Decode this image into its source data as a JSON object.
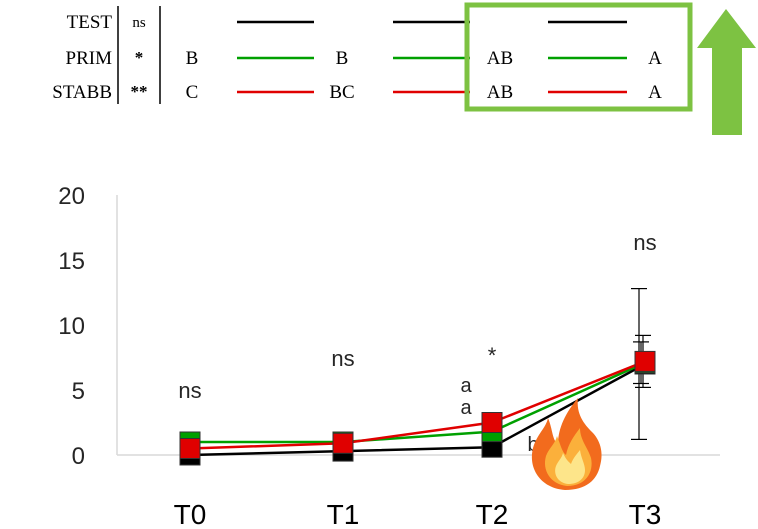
{
  "legend_table": {
    "rows": [
      {
        "name": "TEST",
        "sig": "ns",
        "color": "#000000",
        "letters": [
          "",
          "",
          "",
          ""
        ]
      },
      {
        "name": "PRIM",
        "sig": "*",
        "color": "#00a000",
        "letters": [
          "B",
          "B",
          "AB",
          "A"
        ]
      },
      {
        "name": "STABB",
        "sig": "**",
        "color": "#e00000",
        "letters": [
          "C",
          "BC",
          "AB",
          "A"
        ]
      }
    ],
    "highlight_color": "#7dc242"
  },
  "arrow": {
    "color": "#7dc242",
    "icon": "up-arrow-icon"
  },
  "fire": {
    "icon": "fire-icon"
  },
  "chart_data": {
    "type": "line",
    "categories": [
      "T0",
      "T1",
      "T2",
      "T3"
    ],
    "ylim": [
      0,
      20
    ],
    "yticks": [
      0,
      5,
      10,
      15,
      20
    ],
    "ytick_labels": [
      "0",
      "5",
      "10",
      "15",
      "20"
    ],
    "grid": false,
    "series": [
      {
        "name": "TEST",
        "color": "#000000",
        "values": [
          0,
          0.3,
          0.6,
          7.0
        ],
        "errors": [
          0,
          0,
          0,
          5.8
        ]
      },
      {
        "name": "PRIM",
        "color": "#00a000",
        "values": [
          1.0,
          1.0,
          1.8,
          7.1
        ],
        "errors": [
          0,
          0,
          0,
          1.6
        ]
      },
      {
        "name": "STABB",
        "color": "#e00000",
        "values": [
          0.5,
          0.9,
          2.5,
          7.2
        ],
        "errors": [
          0,
          0,
          0,
          2.0
        ]
      }
    ],
    "annotations": [
      {
        "category": "T0",
        "text": "ns"
      },
      {
        "category": "T1",
        "text": "ns"
      },
      {
        "category": "T2",
        "text": "*"
      },
      {
        "category": "T3",
        "text": "ns"
      }
    ],
    "point_letters": [
      {
        "category": "T2",
        "text": "a"
      },
      {
        "category": "T2",
        "text": "a"
      },
      {
        "category": "T2",
        "text": "b"
      }
    ]
  }
}
